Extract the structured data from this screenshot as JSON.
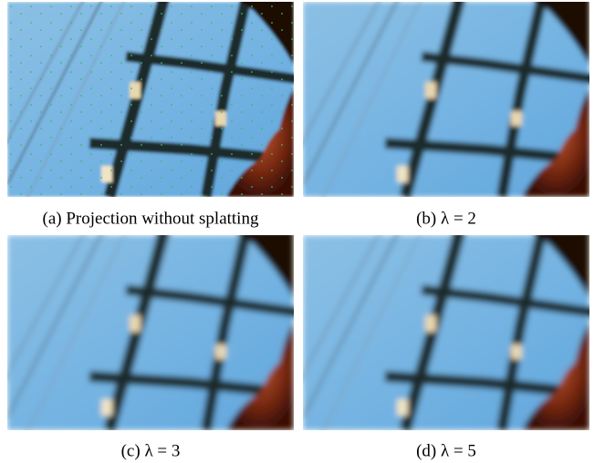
{
  "panels": [
    {
      "caption": "(a) Projection without splatting"
    },
    {
      "caption": "(b) λ = 2"
    },
    {
      "caption": "(c) λ = 3"
    },
    {
      "caption": "(d) λ = 5"
    }
  ]
}
